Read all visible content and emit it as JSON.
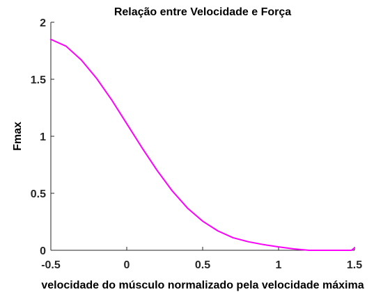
{
  "chart_data": {
    "type": "line",
    "title": "Relação entre Velocidade e Força",
    "xlabel": "velocidade do músculo normalizado pela velocidade máxima",
    "ylabel": "Fmax",
    "xlim": [
      -0.5,
      1.5
    ],
    "ylim": [
      0,
      2
    ],
    "xticks": [
      -0.5,
      0,
      0.5,
      1,
      1.5
    ],
    "xtick_labels": [
      "-0.5",
      "0",
      "0.5",
      "1",
      "1.5"
    ],
    "yticks": [
      0,
      0.5,
      1,
      1.5,
      2
    ],
    "ytick_labels": [
      "0",
      "0.5",
      "1",
      "1.5",
      "2"
    ],
    "grid": false,
    "series": [
      {
        "color": "#ff00ff",
        "x": [
          -0.5,
          -0.4,
          -0.3,
          -0.2,
          -0.1,
          0,
          0.1,
          0.2,
          0.3,
          0.4,
          0.5,
          0.6,
          0.7,
          0.8,
          0.9,
          1.0,
          1.1,
          1.2,
          1.3,
          1.4,
          1.48,
          1.5
        ],
        "y": [
          1.85,
          1.79,
          1.67,
          1.51,
          1.32,
          1.11,
          0.9,
          0.7,
          0.52,
          0.37,
          0.255,
          0.17,
          0.11,
          0.075,
          0.05,
          0.03,
          0.012,
          0.0,
          0.0,
          0.0,
          0.0,
          0.02
        ]
      }
    ]
  }
}
